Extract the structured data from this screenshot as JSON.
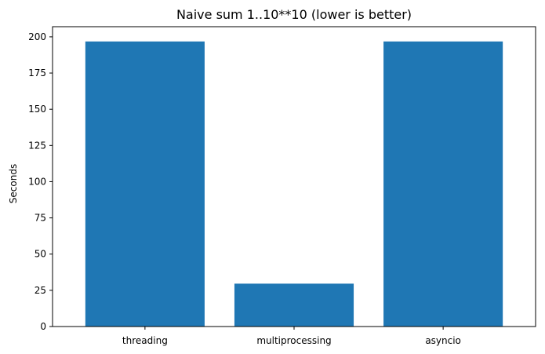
{
  "chart_data": {
    "type": "bar",
    "title": "Naive sum 1..10**10 (lower is better)",
    "xlabel": "",
    "ylabel": "Seconds",
    "categories": [
      "threading",
      "multiprocessing",
      "asyncio"
    ],
    "values": [
      196.8,
      29.6,
      196.8
    ],
    "ylim": [
      0,
      207
    ],
    "yticks": [
      0,
      25,
      50,
      75,
      100,
      125,
      150,
      175,
      200
    ],
    "grid": false,
    "bar_color": "#1f77b4"
  }
}
